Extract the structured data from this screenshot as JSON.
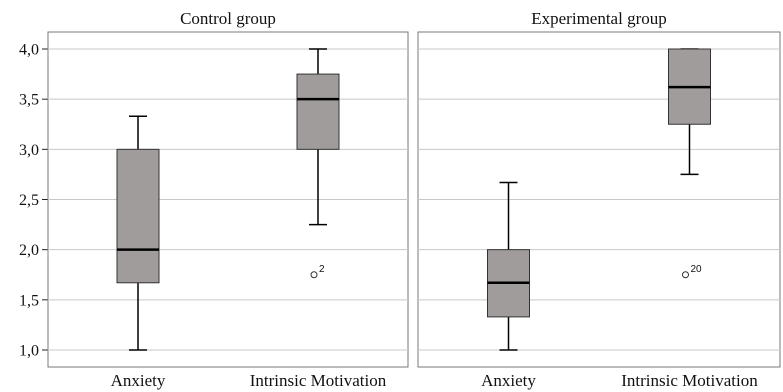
{
  "chart_data": {
    "type": "boxplot",
    "ylim": [
      0.9,
      4.2
    ],
    "yticks": [
      1.0,
      1.5,
      2.0,
      2.5,
      3.0,
      3.5,
      4.0
    ],
    "ytick_labels": [
      "1,0",
      "1,5",
      "2,0",
      "2,5",
      "3,0",
      "3,5",
      "4,0"
    ],
    "grid": true,
    "box_color": "#a09c9c",
    "panels": [
      {
        "title": "Control group",
        "categories": [
          "Anxiety",
          "Intrinsic Motivation"
        ],
        "boxes": [
          {
            "category": "Anxiety",
            "whisker_low": 1.0,
            "q1": 1.67,
            "median": 2.0,
            "q3": 3.0,
            "whisker_high": 3.33,
            "outliers": []
          },
          {
            "category": "Intrinsic Motivation",
            "whisker_low": 2.25,
            "q1": 3.0,
            "median": 3.5,
            "q3": 3.75,
            "whisker_high": 4.0,
            "outliers": [
              {
                "value": 1.75,
                "label": "2"
              }
            ]
          }
        ]
      },
      {
        "title": "Experimental group",
        "categories": [
          "Anxiety",
          "Intrinsic Motivation"
        ],
        "boxes": [
          {
            "category": "Anxiety",
            "whisker_low": 1.0,
            "q1": 1.33,
            "median": 1.67,
            "q3": 2.0,
            "whisker_high": 2.67,
            "outliers": []
          },
          {
            "category": "Intrinsic Motivation",
            "whisker_low": 2.75,
            "q1": 3.25,
            "median": 3.62,
            "q3": 4.0,
            "whisker_high": 4.0,
            "outliers": [
              {
                "value": 1.75,
                "label": "20"
              }
            ]
          }
        ]
      }
    ]
  }
}
